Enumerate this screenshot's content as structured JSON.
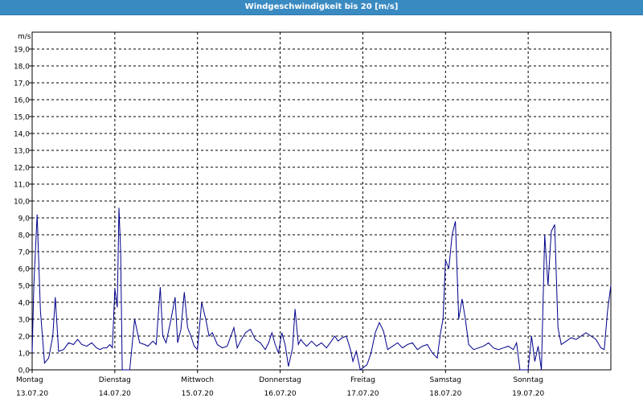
{
  "window": {
    "title": "Windgeschwindigkeit bis 20 [m/s]"
  },
  "colors": {
    "titlebar": "#3a8ac2",
    "series": "#00008b",
    "grid": "#000000",
    "background": "#ffffff"
  },
  "chart_data": {
    "type": "line",
    "title": "Windgeschwindigkeit bis 20 [m/s]",
    "ylabel": "m/s",
    "xlabel": "",
    "ylim": [
      0,
      20
    ],
    "y_ticks": [
      "0,0",
      "1,0",
      "2,0",
      "3,0",
      "4,0",
      "5,0",
      "6,0",
      "7,0",
      "8,0",
      "9,0",
      "10,0",
      "11,0",
      "12,0",
      "13,0",
      "14,0",
      "15,0",
      "16,0",
      "17,0",
      "18,0",
      "19,0"
    ],
    "x_range_days": [
      0,
      7
    ],
    "x_ticks": [
      {
        "day": "Montag",
        "date": "13.07.20"
      },
      {
        "day": "Dienstag",
        "date": "14.07.20"
      },
      {
        "day": "Mittwoch",
        "date": "15.07.20"
      },
      {
        "day": "Donnerstag",
        "date": "16.07.20"
      },
      {
        "day": "Freitag",
        "date": "17.07.20"
      },
      {
        "day": "Samstag",
        "date": "18.07.20"
      },
      {
        "day": "Sonntag",
        "date": "19.07.20"
      }
    ],
    "grid": true,
    "series": [
      {
        "name": "",
        "points": [
          [
            0.0,
            1.0
          ],
          [
            0.02,
            5.0
          ],
          [
            0.06,
            9.2
          ],
          [
            0.1,
            3.5
          ],
          [
            0.15,
            0.4
          ],
          [
            0.2,
            0.7
          ],
          [
            0.25,
            2.0
          ],
          [
            0.28,
            4.3
          ],
          [
            0.32,
            1.1
          ],
          [
            0.38,
            1.2
          ],
          [
            0.44,
            1.6
          ],
          [
            0.5,
            1.5
          ],
          [
            0.55,
            1.8
          ],
          [
            0.6,
            1.5
          ],
          [
            0.66,
            1.4
          ],
          [
            0.72,
            1.6
          ],
          [
            0.78,
            1.3
          ],
          [
            0.82,
            1.2
          ],
          [
            0.86,
            1.3
          ],
          [
            0.9,
            1.3
          ],
          [
            0.94,
            1.5
          ],
          [
            0.97,
            1.3
          ],
          [
            1.0,
            4.8
          ],
          [
            1.03,
            3.7
          ],
          [
            1.05,
            9.6
          ],
          [
            1.07,
            7.0
          ],
          [
            1.09,
            0.0
          ],
          [
            1.18,
            0.0
          ],
          [
            1.24,
            3.0
          ],
          [
            1.3,
            1.6
          ],
          [
            1.36,
            1.5
          ],
          [
            1.4,
            1.4
          ],
          [
            1.46,
            1.7
          ],
          [
            1.5,
            1.5
          ],
          [
            1.55,
            4.9
          ],
          [
            1.58,
            2.0
          ],
          [
            1.62,
            1.6
          ],
          [
            1.68,
            3.0
          ],
          [
            1.73,
            4.3
          ],
          [
            1.76,
            1.6
          ],
          [
            1.8,
            2.4
          ],
          [
            1.84,
            4.6
          ],
          [
            1.88,
            2.5
          ],
          [
            1.92,
            2.0
          ],
          [
            1.96,
            1.4
          ],
          [
            2.0,
            1.2
          ],
          [
            2.05,
            4.0
          ],
          [
            2.1,
            3.0
          ],
          [
            2.14,
            2.0
          ],
          [
            2.18,
            2.2
          ],
          [
            2.24,
            1.5
          ],
          [
            2.3,
            1.3
          ],
          [
            2.36,
            1.4
          ],
          [
            2.44,
            2.5
          ],
          [
            2.48,
            1.3
          ],
          [
            2.52,
            1.7
          ],
          [
            2.58,
            2.2
          ],
          [
            2.64,
            2.4
          ],
          [
            2.7,
            1.8
          ],
          [
            2.76,
            1.6
          ],
          [
            2.82,
            1.2
          ],
          [
            2.86,
            1.6
          ],
          [
            2.9,
            2.2
          ],
          [
            2.94,
            1.5
          ],
          [
            2.98,
            1.0
          ],
          [
            3.02,
            2.2
          ],
          [
            3.06,
            1.5
          ],
          [
            3.1,
            0.2
          ],
          [
            3.15,
            1.3
          ],
          [
            3.18,
            3.6
          ],
          [
            3.22,
            1.5
          ],
          [
            3.25,
            1.8
          ],
          [
            3.28,
            1.6
          ],
          [
            3.32,
            1.4
          ],
          [
            3.38,
            1.7
          ],
          [
            3.44,
            1.4
          ],
          [
            3.5,
            1.6
          ],
          [
            3.56,
            1.3
          ],
          [
            3.62,
            1.7
          ],
          [
            3.66,
            2.0
          ],
          [
            3.7,
            1.7
          ],
          [
            3.75,
            1.9
          ],
          [
            3.8,
            2.0
          ],
          [
            3.85,
            1.2
          ],
          [
            3.88,
            0.5
          ],
          [
            3.92,
            1.1
          ],
          [
            3.97,
            0.0
          ],
          [
            4.05,
            0.3
          ],
          [
            4.1,
            1.0
          ],
          [
            4.15,
            2.2
          ],
          [
            4.2,
            2.8
          ],
          [
            4.25,
            2.3
          ],
          [
            4.3,
            1.2
          ],
          [
            4.36,
            1.4
          ],
          [
            4.42,
            1.6
          ],
          [
            4.48,
            1.3
          ],
          [
            4.54,
            1.5
          ],
          [
            4.6,
            1.6
          ],
          [
            4.66,
            1.2
          ],
          [
            4.72,
            1.4
          ],
          [
            4.78,
            1.5
          ],
          [
            4.84,
            1.0
          ],
          [
            4.9,
            0.7
          ],
          [
            4.94,
            2.2
          ],
          [
            4.97,
            3.0
          ],
          [
            5.0,
            6.5
          ],
          [
            5.04,
            6.0
          ],
          [
            5.08,
            8.0
          ],
          [
            5.12,
            8.8
          ],
          [
            5.16,
            3.0
          ],
          [
            5.2,
            4.2
          ],
          [
            5.24,
            3.0
          ],
          [
            5.28,
            1.5
          ],
          [
            5.34,
            1.2
          ],
          [
            5.4,
            1.3
          ],
          [
            5.46,
            1.4
          ],
          [
            5.52,
            1.6
          ],
          [
            5.58,
            1.3
          ],
          [
            5.64,
            1.2
          ],
          [
            5.7,
            1.3
          ],
          [
            5.76,
            1.4
          ],
          [
            5.82,
            1.2
          ],
          [
            5.86,
            1.6
          ],
          [
            5.9,
            0.0
          ],
          [
            6.0,
            0.0
          ],
          [
            6.04,
            2.0
          ],
          [
            6.08,
            0.5
          ],
          [
            6.12,
            1.4
          ],
          [
            6.16,
            0.0
          ],
          [
            6.2,
            8.0
          ],
          [
            6.24,
            5.0
          ],
          [
            6.28,
            8.2
          ],
          [
            6.32,
            8.6
          ],
          [
            6.36,
            2.5
          ],
          [
            6.4,
            1.5
          ],
          [
            6.46,
            1.7
          ],
          [
            6.52,
            1.9
          ],
          [
            6.58,
            1.8
          ],
          [
            6.64,
            2.0
          ],
          [
            6.7,
            2.2
          ],
          [
            6.76,
            2.0
          ],
          [
            6.82,
            1.8
          ],
          [
            6.88,
            1.3
          ],
          [
            6.92,
            1.2
          ],
          [
            6.96,
            3.5
          ],
          [
            7.0,
            5.0
          ]
        ]
      }
    ]
  }
}
